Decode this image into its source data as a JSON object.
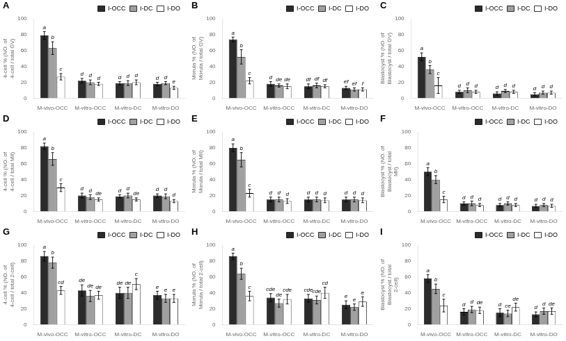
{
  "chart_data": [
    {
      "type": "bar",
      "title": "A",
      "ylabel": "4-cell % (NO. of 4-cell / total GV)",
      "categories": [
        "M-vivo-OCC",
        "M-vitro-OCC",
        "M-vitro-DC",
        "M-vitro-DO"
      ],
      "series": [
        {
          "name": "I-OCC",
          "color": "#2b2b2b",
          "values": [
            79,
            22,
            19,
            18
          ],
          "errors": [
            5,
            3,
            2,
            2
          ],
          "letters": [
            "a",
            "d",
            "d",
            "d"
          ]
        },
        {
          "name": "I-DC",
          "color": "#a0a0a0",
          "values": [
            63,
            20,
            19,
            19
          ],
          "errors": [
            8,
            3,
            3,
            2
          ],
          "letters": [
            "b",
            "d",
            "d",
            "d"
          ]
        },
        {
          "name": "I-DO",
          "color": "#ffffff",
          "values": [
            27,
            18,
            20,
            13
          ],
          "errors": [
            4,
            2,
            3,
            2
          ],
          "letters": [
            "c",
            "d",
            "d",
            "e"
          ]
        }
      ],
      "ylim": [
        0,
        100
      ],
      "yticks": [
        0,
        20,
        40,
        60,
        80,
        100
      ],
      "grid": false,
      "legend": "upper right"
    },
    {
      "type": "bar",
      "title": "B",
      "ylabel": "Morula % (NO. of Morula / total GV)",
      "categories": [
        "M-vivo-OCC",
        "M-vitro-OCC",
        "M-vitro-DC",
        "M-vitro-DO"
      ],
      "series": [
        {
          "name": "I-OCC",
          "color": "#2b2b2b",
          "values": [
            74,
            18,
            15,
            13
          ],
          "errors": [
            3,
            3,
            3,
            2
          ],
          "letters": [
            "a",
            "d",
            "df",
            "ef"
          ]
        },
        {
          "name": "I-DC",
          "color": "#a0a0a0",
          "values": [
            52,
            16,
            16,
            11
          ],
          "errors": [
            9,
            2,
            3,
            2
          ],
          "letters": [
            "b",
            "de",
            "df",
            "ef"
          ]
        },
        {
          "name": "I-DO",
          "color": "#ffffff",
          "values": [
            22,
            15,
            15,
            11
          ],
          "errors": [
            4,
            3,
            2,
            2
          ],
          "letters": [
            "c",
            "de",
            "df",
            "f"
          ]
        }
      ],
      "ylim": [
        0,
        100
      ],
      "yticks": [
        0,
        20,
        40,
        60,
        80,
        100
      ],
      "grid": false,
      "legend": "upper right"
    },
    {
      "type": "bar",
      "title": "C",
      "ylabel": "Blastocyst % (NO. of Blastocyst / total GV)",
      "categories": [
        "M-vivo-OCC",
        "M-vitro-OCC",
        "M-vitro-DC",
        "M-vitro-DO"
      ],
      "series": [
        {
          "name": "I-OCC",
          "color": "#2b2b2b",
          "values": [
            52,
            8,
            6,
            5
          ],
          "errors": [
            5,
            2,
            2,
            2
          ],
          "letters": [
            "a",
            "d",
            "d",
            "d"
          ]
        },
        {
          "name": "I-DC",
          "color": "#a0a0a0",
          "values": [
            36,
            10,
            9,
            7
          ],
          "errors": [
            5,
            3,
            2,
            2
          ],
          "letters": [
            "b",
            "d",
            "d",
            "d"
          ]
        },
        {
          "name": "I-DO",
          "color": "#ffffff",
          "values": [
            16,
            8,
            8,
            7
          ],
          "errors": [
            10,
            2,
            2,
            2
          ],
          "letters": [
            "c",
            "d",
            "d",
            "d"
          ]
        }
      ],
      "ylim": [
        0,
        100
      ],
      "yticks": [
        0,
        20,
        40,
        60,
        80,
        100
      ],
      "grid": false,
      "legend": "upper right"
    },
    {
      "type": "bar",
      "title": "D",
      "ylabel": "4-cell % (NO. of 4-cell / total MII)",
      "categories": [
        "M-vivo-OCC",
        "M-vitro-OCC",
        "M-vitro-DC",
        "M-vitro-DO"
      ],
      "series": [
        {
          "name": "I-OCC",
          "color": "#2b2b2b",
          "values": [
            82,
            20,
            19,
            20
          ],
          "errors": [
            4,
            3,
            2,
            2
          ],
          "letters": [
            "a",
            "d",
            "d",
            "d"
          ]
        },
        {
          "name": "I-DC",
          "color": "#a0a0a0",
          "values": [
            66,
            18,
            20,
            19
          ],
          "errors": [
            8,
            3,
            3,
            3
          ],
          "letters": [
            "b",
            "d",
            "d",
            "d"
          ]
        },
        {
          "name": "I-DO",
          "color": "#ffffff",
          "values": [
            30,
            15,
            15,
            13
          ],
          "errors": [
            5,
            2,
            2,
            2
          ],
          "letters": [
            "c",
            "de",
            "de",
            "d"
          ]
        }
      ],
      "ylim": [
        0,
        100
      ],
      "yticks": [
        0,
        20,
        40,
        60,
        80,
        100
      ],
      "grid": false,
      "legend": "upper right"
    },
    {
      "type": "bar",
      "title": "E",
      "ylabel": "Morula % (NO. of Morula / total MII)",
      "categories": [
        "M-vivo-OCC",
        "M-vitro-OCC",
        "M-vitro-DC",
        "M-vitro-DO"
      ],
      "series": [
        {
          "name": "I-OCC",
          "color": "#2b2b2b",
          "values": [
            80,
            15,
            15,
            15
          ],
          "errors": [
            5,
            3,
            3,
            3
          ],
          "letters": [
            "a",
            "d",
            "d",
            "d"
          ]
        },
        {
          "name": "I-DC",
          "color": "#a0a0a0",
          "values": [
            65,
            15,
            15,
            15
          ],
          "errors": [
            9,
            3,
            3,
            3
          ],
          "letters": [
            "b",
            "d",
            "d",
            "d"
          ]
        },
        {
          "name": "I-DO",
          "color": "#ffffff",
          "values": [
            23,
            13,
            14,
            14
          ],
          "errors": [
            5,
            3,
            3,
            3
          ],
          "letters": [
            "c",
            "d",
            "d",
            "d"
          ]
        }
      ],
      "ylim": [
        0,
        100
      ],
      "yticks": [
        0,
        20,
        40,
        60,
        80,
        100
      ],
      "grid": false,
      "legend": "upper right"
    },
    {
      "type": "bar",
      "title": "F",
      "ylabel": "Blastocyst % (NO. of Blastocyst / total MII)",
      "categories": [
        "M-vivo-OCC",
        "M-vitro-OCC",
        "M-vitro-DC",
        "M-vitro-DO"
      ],
      "series": [
        {
          "name": "I-OCC",
          "color": "#2b2b2b",
          "values": [
            50,
            10,
            8,
            7
          ],
          "errors": [
            5,
            2,
            2,
            2
          ],
          "letters": [
            "a",
            "d",
            "d",
            "d"
          ]
        },
        {
          "name": "I-DC",
          "color": "#a0a0a0",
          "values": [
            40,
            10,
            10,
            8
          ],
          "errors": [
            5,
            3,
            2,
            2
          ],
          "letters": [
            "b",
            "d",
            "d",
            "d"
          ]
        },
        {
          "name": "I-DO",
          "color": "#ffffff",
          "values": [
            15,
            8,
            8,
            7
          ],
          "errors": [
            4,
            2,
            2,
            2
          ],
          "letters": [
            "c",
            "d",
            "d",
            "d"
          ]
        }
      ],
      "ylim": [
        0,
        100
      ],
      "yticks": [
        0,
        20,
        40,
        60,
        80,
        100
      ],
      "grid": false,
      "legend": "upper right"
    },
    {
      "type": "bar",
      "title": "G",
      "ylabel": "4-cell % (NO. of 4-cell / total 2-cell)",
      "categories": [
        "M-vivo-OCC",
        "M-vitro-OCC",
        "M-vitro-DC",
        "M-vitro-DO"
      ],
      "series": [
        {
          "name": "I-OCC",
          "color": "#2b2b2b",
          "values": [
            86,
            43,
            40,
            37
          ],
          "errors": [
            6,
            7,
            7,
            5
          ],
          "letters": [
            "a",
            "de",
            "de",
            "e"
          ]
        },
        {
          "name": "I-DC",
          "color": "#a0a0a0",
          "values": [
            78,
            36,
            40,
            33
          ],
          "errors": [
            7,
            7,
            7,
            5
          ],
          "letters": [
            "b",
            "de",
            "de",
            "e"
          ]
        },
        {
          "name": "I-DO",
          "color": "#ffffff",
          "values": [
            43,
            37,
            51,
            33
          ],
          "errors": [
            5,
            5,
            7,
            5
          ],
          "letters": [
            "cd",
            "de",
            "c",
            "e"
          ]
        }
      ],
      "ylim": [
        0,
        100
      ],
      "yticks": [
        0,
        20,
        40,
        60,
        80,
        100
      ],
      "grid": false,
      "legend": "upper right"
    },
    {
      "type": "bar",
      "title": "H",
      "ylabel": "Morula % (NO. of Morula / total 2-cell)",
      "categories": [
        "M-vivo-OCC",
        "M-vitro-OCC",
        "M-vitro-DC",
        "M-vitro-DO"
      ],
      "series": [
        {
          "name": "I-OCC",
          "color": "#2b2b2b",
          "values": [
            86,
            34,
            33,
            25
          ],
          "errors": [
            4,
            5,
            5,
            5
          ],
          "letters": [
            "a",
            "cde",
            "cde",
            "e"
          ]
        },
        {
          "name": "I-DC",
          "color": "#a0a0a0",
          "values": [
            64,
            27,
            31,
            22
          ],
          "errors": [
            7,
            5,
            5,
            4
          ],
          "letters": [
            "b",
            "de",
            "cde",
            "e"
          ]
        },
        {
          "name": "I-DO",
          "color": "#ffffff",
          "values": [
            36,
            32,
            40,
            29
          ],
          "errors": [
            6,
            6,
            7,
            6
          ],
          "letters": [
            "c",
            "cde",
            "cd",
            "e"
          ]
        }
      ],
      "ylim": [
        0,
        100
      ],
      "yticks": [
        0,
        20,
        40,
        60,
        80,
        100
      ],
      "grid": false,
      "legend": "upper right"
    },
    {
      "type": "bar",
      "title": "I",
      "ylabel": "Blastocyst % (NO. of Blastocyst / total 2-cell)",
      "categories": [
        "M-vivo-OCC",
        "M-vitro-OCC",
        "M-vitro-DC",
        "M-vitro-DO"
      ],
      "series": [
        {
          "name": "I-OCC",
          "color": "#2b2b2b",
          "values": [
            58,
            16,
            15,
            13
          ],
          "errors": [
            5,
            4,
            5,
            3
          ],
          "letters": [
            "a",
            "d",
            "d",
            "d"
          ]
        },
        {
          "name": "I-DC",
          "color": "#a0a0a0",
          "values": [
            45,
            19,
            14,
            17
          ],
          "errors": [
            6,
            4,
            4,
            4
          ],
          "letters": [
            "b",
            "d",
            "ce",
            "d"
          ]
        },
        {
          "name": "I-DO",
          "color": "#ffffff",
          "values": [
            24,
            18,
            22,
            17
          ],
          "errors": [
            8,
            4,
            5,
            4
          ],
          "letters": [
            "c",
            "de",
            "de",
            "de"
          ]
        }
      ],
      "ylim": [
        0,
        100
      ],
      "yticks": [
        0,
        20,
        40,
        60,
        80,
        100
      ],
      "grid": false,
      "legend": "upper right"
    }
  ]
}
